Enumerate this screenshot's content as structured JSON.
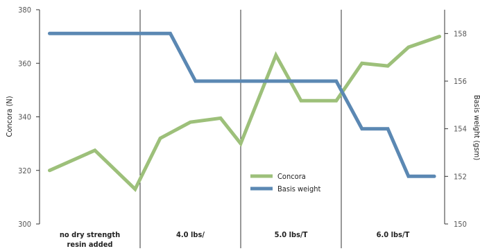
{
  "chart_data": {
    "type": "line",
    "categories": [
      {
        "line1": "no dry strength",
        "line2": "resin added"
      },
      {
        "line1": "4.0 lbs/",
        "line2": ""
      },
      {
        "line1": "5.0 lbs/T",
        "line2": ""
      },
      {
        "line1": "6.0 lbs/T",
        "line2": ""
      }
    ],
    "y_left": {
      "label": "Concora (N)",
      "min": 300,
      "max": 380,
      "ticks": [
        300,
        320,
        340,
        360,
        380
      ]
    },
    "y_right": {
      "label": "Basis weight (gsm)",
      "min": 150,
      "max": 159,
      "ticks": [
        150,
        152,
        154,
        156,
        158
      ]
    },
    "series": [
      {
        "name": "Concora",
        "axis": "left",
        "color": "#9dc07a",
        "x": [
          0.1,
          0.55,
          0.95,
          1.2,
          1.5,
          1.8,
          2.0,
          2.35,
          2.6,
          2.95,
          3.2,
          3.45,
          3.65,
          3.95
        ],
        "values": [
          320,
          327.5,
          313,
          332,
          338,
          339.5,
          330,
          363,
          346,
          346,
          360,
          359,
          366,
          370
        ]
      },
      {
        "name": "Basis weight",
        "axis": "right",
        "color": "#5b88b3",
        "x": [
          0.1,
          1.3,
          1.55,
          2.0,
          2.5,
          2.95,
          3.2,
          3.45,
          3.65,
          3.9
        ],
        "values": [
          158,
          158,
          156,
          156,
          156,
          156,
          154,
          154,
          152,
          152
        ]
      }
    ],
    "legend": {
      "placement": "center-bottom",
      "items": [
        "Concora",
        "Basis weight"
      ]
    }
  }
}
